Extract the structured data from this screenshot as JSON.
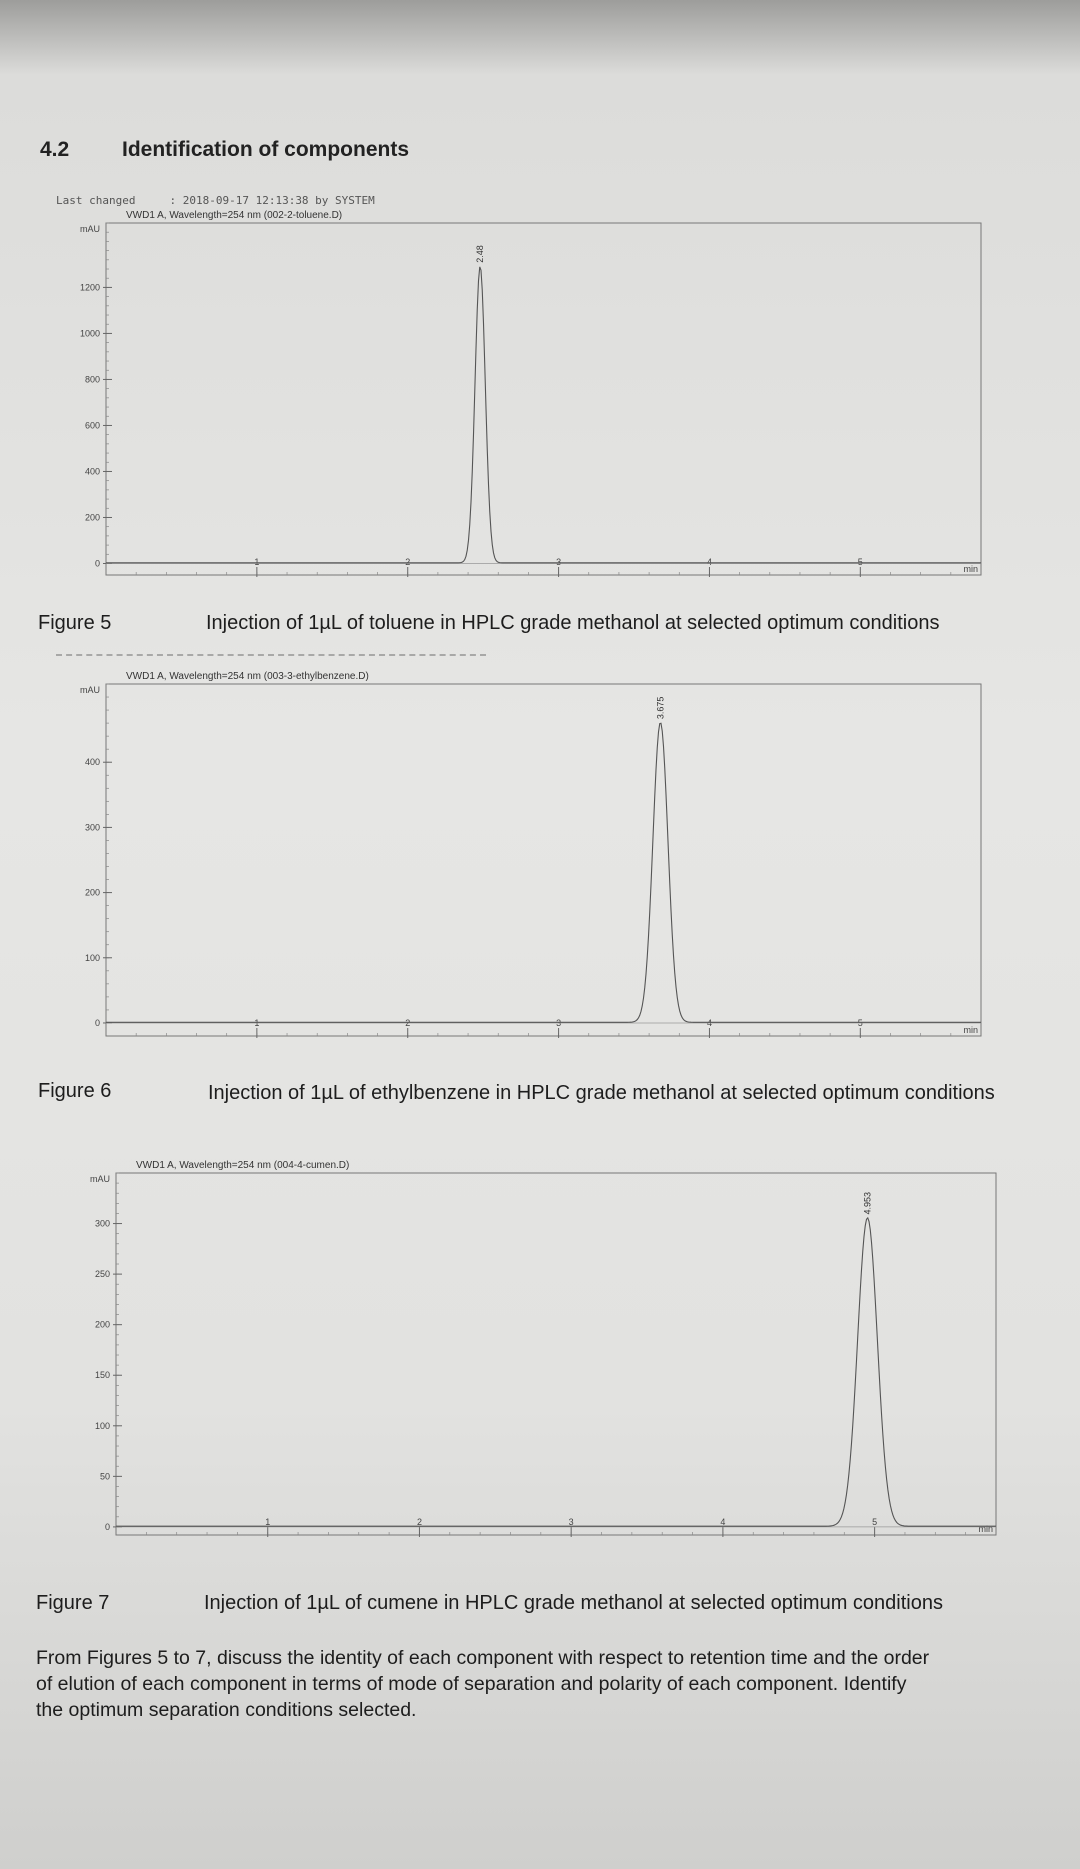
{
  "section": {
    "number": "4.2",
    "title": "Identification of components"
  },
  "meta": {
    "label": "Last changed",
    "value": ": 2018-09-17 12:13:38 by SYSTEM"
  },
  "chart_data": [
    {
      "type": "line",
      "header": "VWD1 A, Wavelength=254 nm (002-2-toluene.D)",
      "ylabel": "mAU",
      "xlabel": "min",
      "xlim": [
        0,
        5.8
      ],
      "ylim": [
        -50,
        1480
      ],
      "x_ticks": [
        1,
        2,
        3,
        4,
        5
      ],
      "y_ticks": [
        0,
        200,
        400,
        600,
        800,
        1000,
        1200
      ],
      "peak": {
        "rt": 2.48,
        "height": 1290,
        "width": 0.034,
        "label": "2.48"
      }
    },
    {
      "type": "line",
      "header": "VWD1 A, Wavelength=254 nm (003-3-ethylbenzene.D)",
      "ylabel": "mAU",
      "xlabel": "min",
      "xlim": [
        0,
        5.8
      ],
      "ylim": [
        -20,
        520
      ],
      "x_ticks": [
        1,
        2,
        3,
        4,
        5
      ],
      "y_ticks": [
        0,
        100,
        200,
        300,
        400
      ],
      "peak": {
        "rt": 3.675,
        "height": 460,
        "width": 0.05,
        "label": "3.675"
      }
    },
    {
      "type": "line",
      "header": "VWD1 A, Wavelength=254 nm (004-4-cumen.D)",
      "ylabel": "mAU",
      "xlabel": "min",
      "xlim": [
        0,
        5.8
      ],
      "ylim": [
        -8,
        350
      ],
      "x_ticks": [
        1,
        2,
        3,
        4,
        5
      ],
      "y_ticks": [
        0,
        50,
        100,
        150,
        200,
        250,
        300
      ],
      "peak": {
        "rt": 4.953,
        "height": 305,
        "width": 0.065,
        "label": "4.953"
      }
    }
  ],
  "captions": [
    {
      "figure": "Figure 5",
      "text": "Injection of 1µL of toluene in HPLC grade methanol at selected optimum conditions"
    },
    {
      "figure": "Figure 6",
      "text": "Injection of 1µL of ethylbenzene in HPLC grade methanol at selected optimum conditions"
    },
    {
      "figure": "Figure 7",
      "text": "Injection of 1µL of cumene in HPLC grade methanol at selected optimum conditions"
    }
  ],
  "question": {
    "line1": "From Figures 5 to 7, discuss the identity of each component with respect to retention time and the order",
    "line2": "of elution of each component in terms of mode of separation and polarity of each component. Identify",
    "line3": "the optimum separation conditions selected."
  }
}
